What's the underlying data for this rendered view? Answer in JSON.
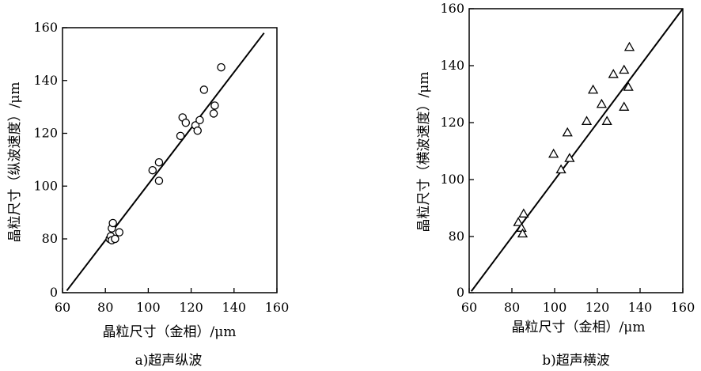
{
  "chart_data": [
    {
      "type": "scatter",
      "caption": "a)超声纵波",
      "xlabel": "晶粒尺寸（金相）/μm",
      "ylabel": "晶粒尺寸（纵波速度）/μm",
      "xlim": [
        60,
        160
      ],
      "ylim": [
        0,
        160
      ],
      "y_axis_break": true,
      "xticks": [
        "60",
        "80",
        "100",
        "120",
        "140",
        "160"
      ],
      "yticks": [
        "0",
        "80",
        "100",
        "120",
        "140",
        "160"
      ],
      "marker": "circle",
      "fit_line": {
        "x": [
          62,
          154
        ],
        "y": [
          3,
          158
        ]
      },
      "points": [
        {
          "x": 82,
          "y": 80
        },
        {
          "x": 82.5,
          "y": 81
        },
        {
          "x": 83,
          "y": 84
        },
        {
          "x": 83.5,
          "y": 86
        },
        {
          "x": 83,
          "y": 78
        },
        {
          "x": 84.5,
          "y": 80
        },
        {
          "x": 86.5,
          "y": 82.5
        },
        {
          "x": 102,
          "y": 106
        },
        {
          "x": 105,
          "y": 109
        },
        {
          "x": 105,
          "y": 102
        },
        {
          "x": 115,
          "y": 119
        },
        {
          "x": 116,
          "y": 126
        },
        {
          "x": 117.5,
          "y": 124
        },
        {
          "x": 122,
          "y": 123
        },
        {
          "x": 123,
          "y": 121
        },
        {
          "x": 124,
          "y": 125
        },
        {
          "x": 126,
          "y": 136.5
        },
        {
          "x": 130.5,
          "y": 127.5
        },
        {
          "x": 131,
          "y": 130.5
        },
        {
          "x": 134,
          "y": 145
        }
      ]
    },
    {
      "type": "scatter",
      "caption": "b)超声横波",
      "xlabel": "晶粒尺寸（金相）/μm",
      "ylabel": "晶粒尺寸（横波速度）/μm",
      "xlim": [
        60,
        160
      ],
      "ylim": [
        0,
        160
      ],
      "y_axis_break": true,
      "xticks": [
        "60",
        "80",
        "100",
        "120",
        "140",
        "160"
      ],
      "yticks": [
        "0",
        "80",
        "100",
        "120",
        "140",
        "160"
      ],
      "marker": "triangle",
      "fit_line": {
        "x": [
          61,
          160
        ],
        "y": [
          2,
          160
        ]
      },
      "points": [
        {
          "x": 83,
          "y": 85
        },
        {
          "x": 84.5,
          "y": 83
        },
        {
          "x": 85,
          "y": 81
        },
        {
          "x": 85.5,
          "y": 88
        },
        {
          "x": 99.5,
          "y": 109
        },
        {
          "x": 103,
          "y": 103.5
        },
        {
          "x": 106,
          "y": 116.5
        },
        {
          "x": 107,
          "y": 107.5
        },
        {
          "x": 115,
          "y": 120.5
        },
        {
          "x": 118,
          "y": 131.5
        },
        {
          "x": 122,
          "y": 126.5
        },
        {
          "x": 124.5,
          "y": 120.5
        },
        {
          "x": 127.5,
          "y": 137
        },
        {
          "x": 132.5,
          "y": 138.5
        },
        {
          "x": 132.5,
          "y": 125.5
        },
        {
          "x": 134.5,
          "y": 132.5
        },
        {
          "x": 135,
          "y": 146.5
        }
      ]
    }
  ]
}
